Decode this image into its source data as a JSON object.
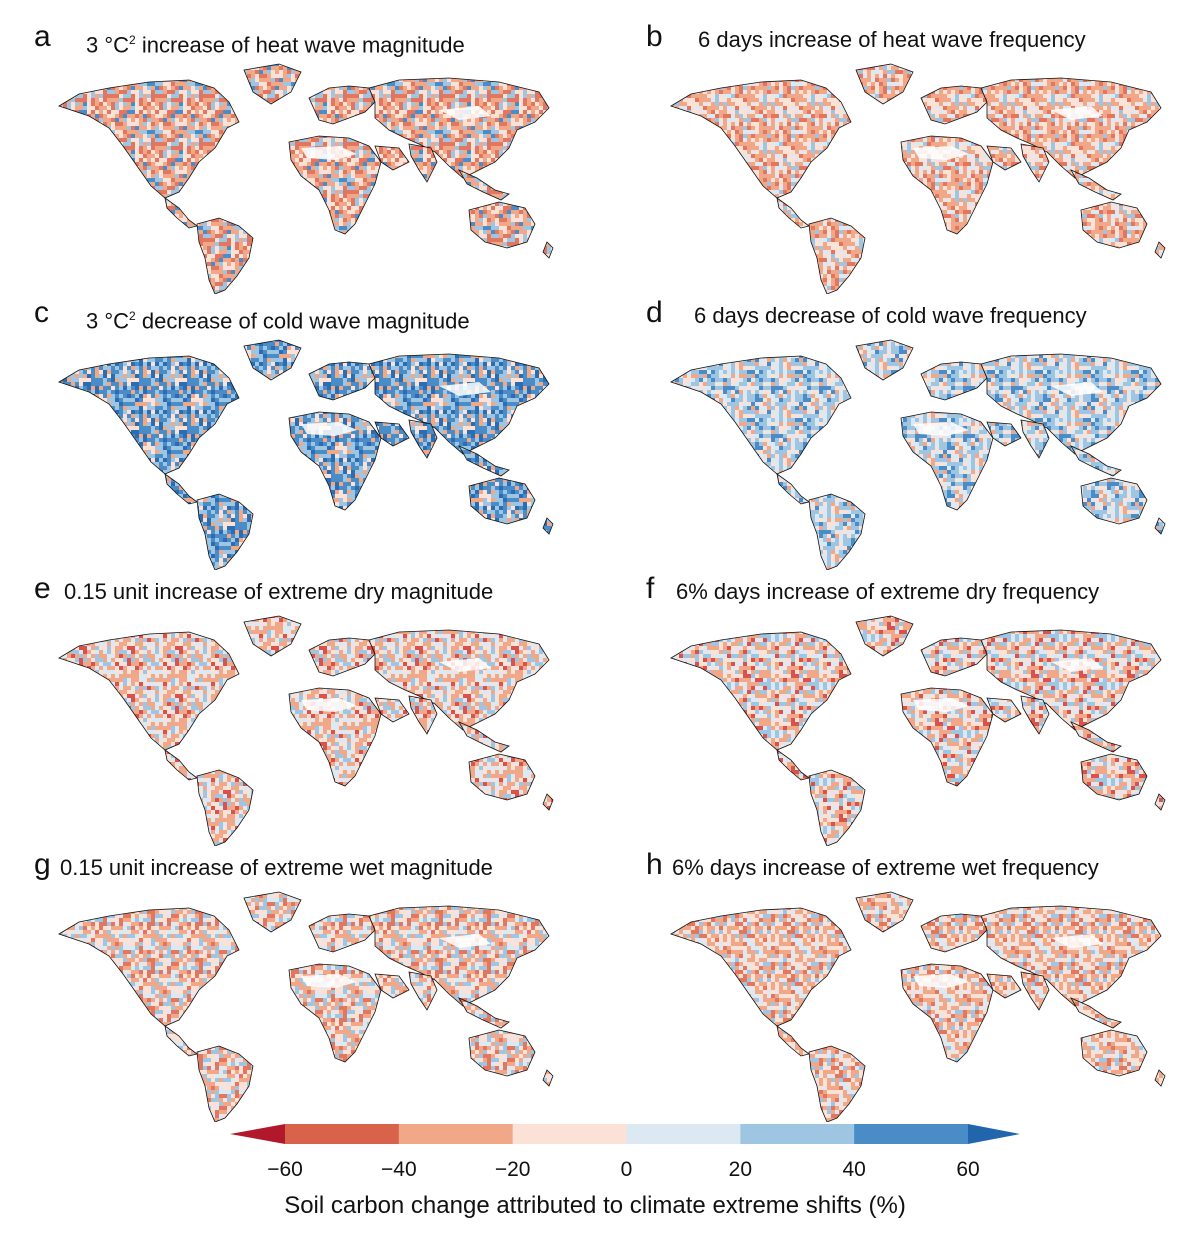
{
  "panels": [
    {
      "letter": "a",
      "title_pre": "3 °C",
      "title_sup": "2",
      "title_post": " increase of heat wave magnitude",
      "tint": [
        "#e3765e",
        "#f0a888",
        "#fbe1d6",
        "#9ec6e3",
        "#4a8cc6"
      ],
      "weights": [
        0.2,
        0.25,
        0.25,
        0.2,
        0.1
      ]
    },
    {
      "letter": "b",
      "title_pre": "6 days",
      "title_sup": "",
      "title_post": " increase of heat wave frequency",
      "tint": [
        "#e3765e",
        "#f0a888",
        "#fbe1d6",
        "#dce9f3",
        "#9ec6e3"
      ],
      "weights": [
        0.15,
        0.35,
        0.3,
        0.12,
        0.08
      ]
    },
    {
      "letter": "c",
      "title_pre": "3 °C",
      "title_sup": "2",
      "title_post": " decrease of cold wave magnitude",
      "tint": [
        "#f0a888",
        "#fbe1d6",
        "#9ec6e3",
        "#4a8cc6",
        "#2a6db2"
      ],
      "weights": [
        0.1,
        0.15,
        0.25,
        0.3,
        0.2
      ]
    },
    {
      "letter": "d",
      "title_pre": "6 days",
      "title_sup": "",
      "title_post": " decrease of cold wave frequency",
      "tint": [
        "#f0a888",
        "#fbe1d6",
        "#dce9f3",
        "#9ec6e3",
        "#4a8cc6"
      ],
      "weights": [
        0.12,
        0.2,
        0.23,
        0.3,
        0.15
      ]
    },
    {
      "letter": "e",
      "title_pre": "0.15 unit",
      "title_sup": "",
      "title_post": " increase of extreme dry magnitude",
      "tint": [
        "#d9534a",
        "#f0a888",
        "#fbe1d6",
        "#dce9f3",
        "#9ec6e3"
      ],
      "weights": [
        0.1,
        0.3,
        0.25,
        0.2,
        0.15
      ]
    },
    {
      "letter": "f",
      "title_pre": "6% days",
      "title_sup": "",
      "title_post": " increase of extreme dry frequency",
      "tint": [
        "#d9534a",
        "#f0a888",
        "#fbe1d6",
        "#dce9f3",
        "#9ec6e3"
      ],
      "weights": [
        0.1,
        0.25,
        0.3,
        0.2,
        0.15
      ]
    },
    {
      "letter": "g",
      "title_pre": "0.15 unit",
      "title_sup": "",
      "title_post": " increase of extreme wet magnitude",
      "tint": [
        "#e3765e",
        "#f0a888",
        "#fbe1d6",
        "#dce9f3",
        "#9ec6e3"
      ],
      "weights": [
        0.15,
        0.35,
        0.25,
        0.15,
        0.1
      ]
    },
    {
      "letter": "h",
      "title_pre": "6% days",
      "title_sup": "",
      "title_post": " increase of extreme wet frequency",
      "tint": [
        "#e3765e",
        "#f0a888",
        "#fbe1d6",
        "#dce9f3",
        "#9ec6e3"
      ],
      "weights": [
        0.15,
        0.3,
        0.25,
        0.18,
        0.12
      ]
    }
  ],
  "colorbar": {
    "ticks": [
      "−60",
      "−40",
      "−20",
      "0",
      "20",
      "40",
      "60"
    ],
    "tick_values": [
      -60,
      -40,
      -20,
      0,
      20,
      40,
      60
    ],
    "colors": [
      "#d9624b",
      "#f0a888",
      "#fbe1d6",
      "#dce9f3",
      "#9ec6e3",
      "#4a8cc6"
    ],
    "under_color": "#b2182b",
    "over_color": "#2166ac",
    "label": "Soil carbon change attributed to climate extreme shifts (%)"
  }
}
